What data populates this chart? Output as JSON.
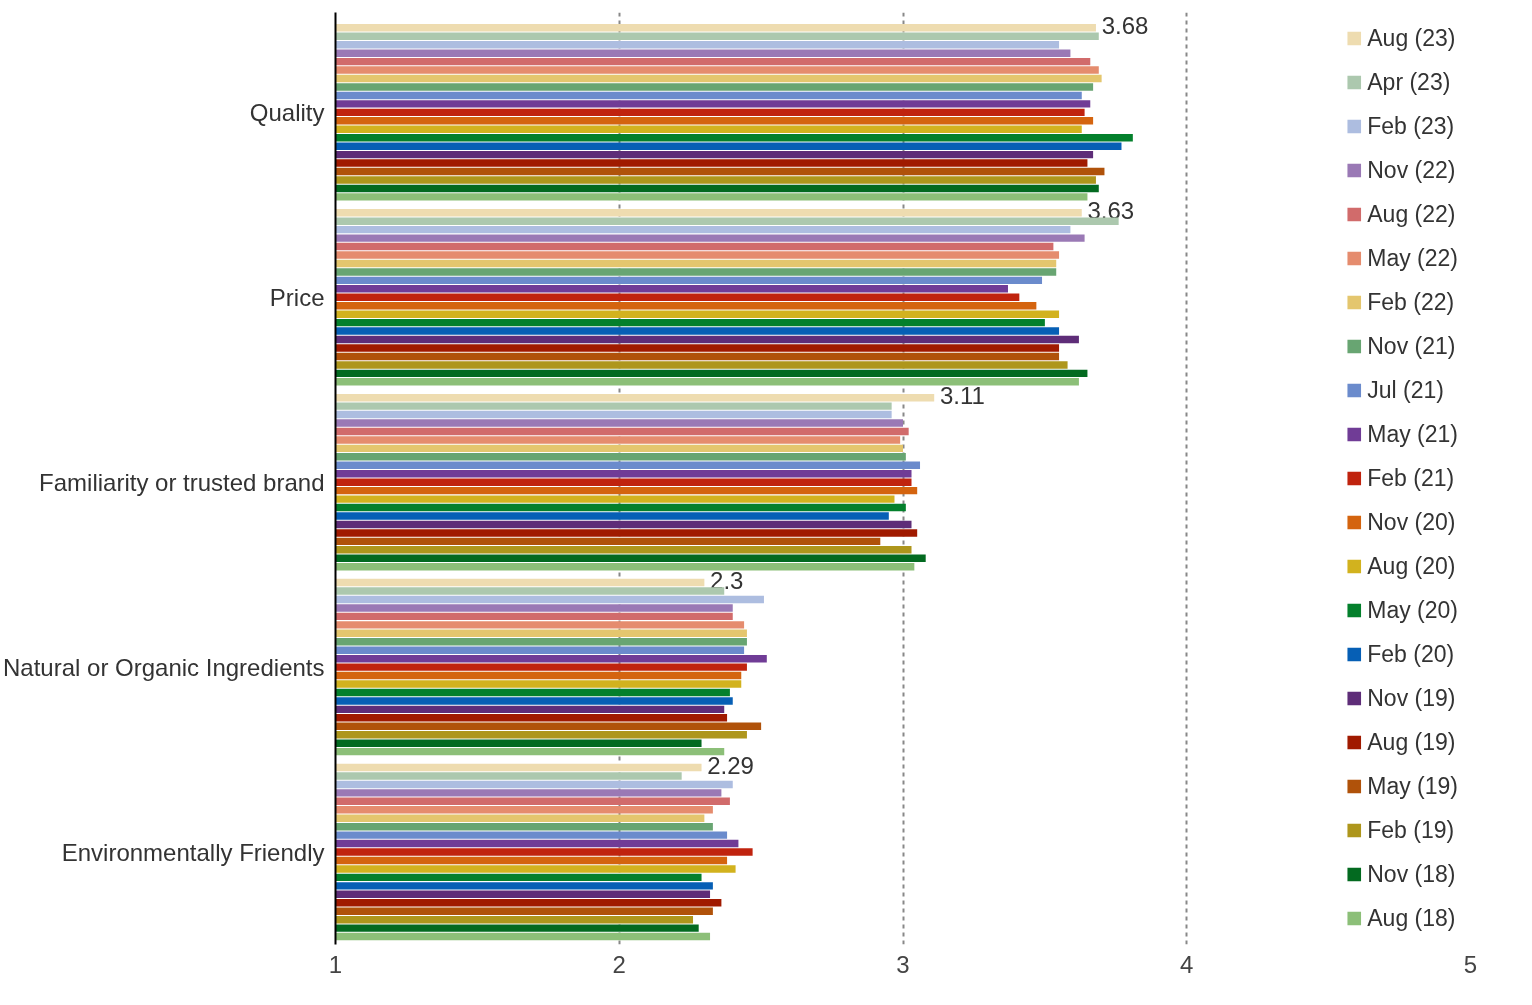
{
  "chart_data": {
    "type": "bar",
    "orientation": "horizontal",
    "categories": [
      "Quality",
      "Price",
      "Familiarity or trusted brand",
      "Natural or Organic Ingredients",
      "Environmentally Friendly"
    ],
    "xlim": [
      1,
      5
    ],
    "xticks": [
      1,
      2,
      3,
      4,
      5
    ],
    "grid": "x",
    "legend": "right",
    "series": [
      {
        "name": "Aug (23)",
        "color": "#eedcb0",
        "values": [
          3.68,
          3.63,
          3.11,
          2.3,
          2.29
        ],
        "value_labels": [
          "3.68",
          "3.63",
          "3.11",
          "2.3",
          "2.29"
        ]
      },
      {
        "name": "Apr (23)",
        "color": "#acc8ae",
        "values": [
          3.69,
          3.76,
          2.96,
          2.37,
          2.22
        ]
      },
      {
        "name": "Feb (23)",
        "color": "#adbde0",
        "values": [
          3.55,
          3.59,
          2.96,
          2.51,
          2.4
        ]
      },
      {
        "name": "Nov (22)",
        "color": "#9a79b5",
        "values": [
          3.59,
          3.64,
          3.0,
          2.4,
          2.36
        ]
      },
      {
        "name": "Aug (22)",
        "color": "#d16b6b",
        "values": [
          3.66,
          3.53,
          3.02,
          2.4,
          2.39
        ]
      },
      {
        "name": "May (22)",
        "color": "#e58c6e",
        "values": [
          3.69,
          3.55,
          2.99,
          2.44,
          2.33
        ]
      },
      {
        "name": "Feb (22)",
        "color": "#e4c66e",
        "values": [
          3.7,
          3.54,
          3.0,
          2.45,
          2.3
        ]
      },
      {
        "name": "Nov (21)",
        "color": "#68a572",
        "values": [
          3.67,
          3.54,
          3.01,
          2.45,
          2.33
        ]
      },
      {
        "name": "Jul (21)",
        "color": "#6b8bcc",
        "values": [
          3.63,
          3.49,
          3.06,
          2.44,
          2.38
        ]
      },
      {
        "name": "May (21)",
        "color": "#703c96",
        "values": [
          3.66,
          3.37,
          3.03,
          2.52,
          2.42
        ]
      },
      {
        "name": "Feb (21)",
        "color": "#c0230e",
        "values": [
          3.64,
          3.41,
          3.03,
          2.45,
          2.47
        ]
      },
      {
        "name": "Nov (20)",
        "color": "#d4640f",
        "values": [
          3.67,
          3.47,
          3.05,
          2.43,
          2.38
        ]
      },
      {
        "name": "Aug (20)",
        "color": "#d2b21e",
        "values": [
          3.63,
          3.55,
          2.97,
          2.43,
          2.41
        ]
      },
      {
        "name": "May (20)",
        "color": "#04802c",
        "values": [
          3.81,
          3.5,
          3.01,
          2.39,
          2.29
        ]
      },
      {
        "name": "Feb (20)",
        "color": "#065fb5",
        "values": [
          3.77,
          3.55,
          2.95,
          2.4,
          2.33
        ]
      },
      {
        "name": "Nov (19)",
        "color": "#5e2d78",
        "values": [
          3.67,
          3.62,
          3.03,
          2.37,
          2.32
        ]
      },
      {
        "name": "Aug (19)",
        "color": "#a01a00",
        "values": [
          3.65,
          3.55,
          3.05,
          2.38,
          2.36
        ]
      },
      {
        "name": "May (19)",
        "color": "#b0520a",
        "values": [
          3.71,
          3.55,
          2.92,
          2.5,
          2.33
        ]
      },
      {
        "name": "Feb (19)",
        "color": "#ae961c",
        "values": [
          3.68,
          3.58,
          3.03,
          2.45,
          2.26
        ]
      },
      {
        "name": "Nov (18)",
        "color": "#036a20",
        "values": [
          3.69,
          3.65,
          3.08,
          2.29,
          2.28
        ]
      },
      {
        "name": "Aug (18)",
        "color": "#8cbf78",
        "values": [
          3.65,
          3.62,
          3.04,
          2.37,
          2.32
        ]
      }
    ]
  }
}
